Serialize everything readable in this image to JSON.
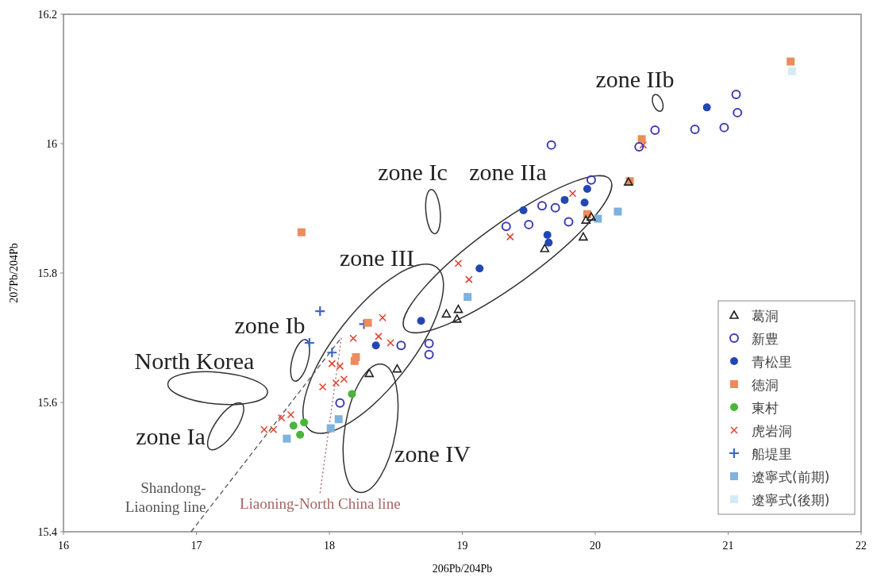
{
  "chart_data": {
    "type": "scatter",
    "xlabel": "206Pb/204Pb",
    "ylabel": "207Pb/204Pb",
    "xlim": [
      16,
      22
    ],
    "ylim": [
      15.4,
      16.2
    ],
    "xticks": [
      16,
      17,
      18,
      19,
      20,
      21,
      22
    ],
    "yticks": [
      15.4,
      15.6,
      15.8,
      16,
      16.2
    ],
    "legend": "bottom right",
    "series": [
      {
        "name": "葛洞",
        "color": "#222222",
        "marker": "triangle",
        "x": [
          18.3,
          18.51,
          18.88,
          18.97,
          18.96,
          19.62,
          19.91,
          19.93,
          19.97,
          20.25
        ],
        "values": [
          15.645,
          15.652,
          15.737,
          15.744,
          15.729,
          15.838,
          15.856,
          15.882,
          15.887,
          15.941
        ]
      },
      {
        "name": "新豊",
        "color": "#3c3cb4",
        "marker": "circle-open",
        "x": [
          18.08,
          18.54,
          18.75,
          18.75,
          19.33,
          19.5,
          19.6,
          19.7,
          19.8,
          19.97,
          19.67,
          21.06,
          21.07,
          20.97,
          20.75,
          20.45,
          20.33
        ],
        "values": [
          15.599,
          15.688,
          15.691,
          15.674,
          15.872,
          15.875,
          15.904,
          15.901,
          15.879,
          15.944,
          15.998,
          16.076,
          16.048,
          16.025,
          16.022,
          16.021,
          15.995
        ]
      },
      {
        "name": "青松里",
        "color": "#2346b4",
        "marker": "circle",
        "x": [
          18.35,
          18.69,
          19.13,
          19.46,
          19.77,
          19.64,
          19.65,
          19.92,
          19.94,
          20.84
        ],
        "values": [
          15.688,
          15.726,
          15.807,
          15.897,
          15.913,
          15.859,
          15.847,
          15.909,
          15.93,
          16.056
        ]
      },
      {
        "name": "徳洞",
        "color": "#ec8c5c",
        "marker": "square",
        "x": [
          17.79,
          18.29,
          18.2,
          18.19,
          20.35,
          20.26,
          19.94,
          21.47
        ],
        "values": [
          15.863,
          15.723,
          15.67,
          15.664,
          16.007,
          15.942,
          15.891,
          16.127
        ]
      },
      {
        "name": "東村",
        "color": "#4cb43c",
        "marker": "circle",
        "x": [
          17.73,
          17.81,
          17.78,
          18.17
        ],
        "values": [
          15.564,
          15.569,
          15.55,
          15.613
        ]
      },
      {
        "name": "虎岩洞",
        "color": "#e0402c",
        "marker": "cross",
        "x": [
          18.4,
          18.18,
          18.37,
          18.46,
          18.02,
          18.08,
          17.95,
          18.05,
          18.11,
          17.64,
          17.71,
          17.51,
          17.58,
          18.97,
          19.05,
          19.36,
          19.83,
          20.36
        ],
        "values": [
          15.731,
          15.699,
          15.702,
          15.692,
          15.66,
          15.656,
          15.624,
          15.63,
          15.636,
          15.576,
          15.581,
          15.558,
          15.558,
          15.815,
          15.79,
          15.856,
          15.923,
          15.998
        ]
      },
      {
        "name": "船堤里",
        "color": "#3c64c8",
        "marker": "plus",
        "x": [
          17.93,
          17.85,
          18.02,
          18.26
        ],
        "values": [
          15.741,
          15.692,
          15.677,
          15.721
        ]
      },
      {
        "name": "遼寧式(前期)",
        "color": "#7fb2dc",
        "marker": "square",
        "x": [
          17.68,
          18.01,
          18.07,
          19.04,
          20.02,
          20.17
        ],
        "values": [
          15.544,
          15.56,
          15.574,
          15.763,
          15.884,
          15.895
        ]
      },
      {
        "name": "遼寧式(後期)",
        "color": "#d6eaf5",
        "marker": "square",
        "x": [
          21.48
        ],
        "values": [
          16.112
        ]
      },
      {
        "name": "Shandong-\nLiaoning line",
        "type": "line",
        "line_style": "dashed",
        "color": "#555555",
        "x": [
          16.96,
          18.09
        ],
        "values": [
          15.4,
          15.7
        ]
      },
      {
        "name": "Liaoning-North China line",
        "type": "line",
        "line_style": "dotted",
        "color": "#a86464",
        "x": [
          17.93,
          18.09
        ],
        "values": [
          15.46,
          15.7
        ]
      }
    ],
    "annotations": [
      "zone IIb",
      "zone Ic",
      "zone IIa",
      "zone III",
      "zone Ib",
      "North Korea",
      "zone Ia",
      "zone IV"
    ]
  }
}
